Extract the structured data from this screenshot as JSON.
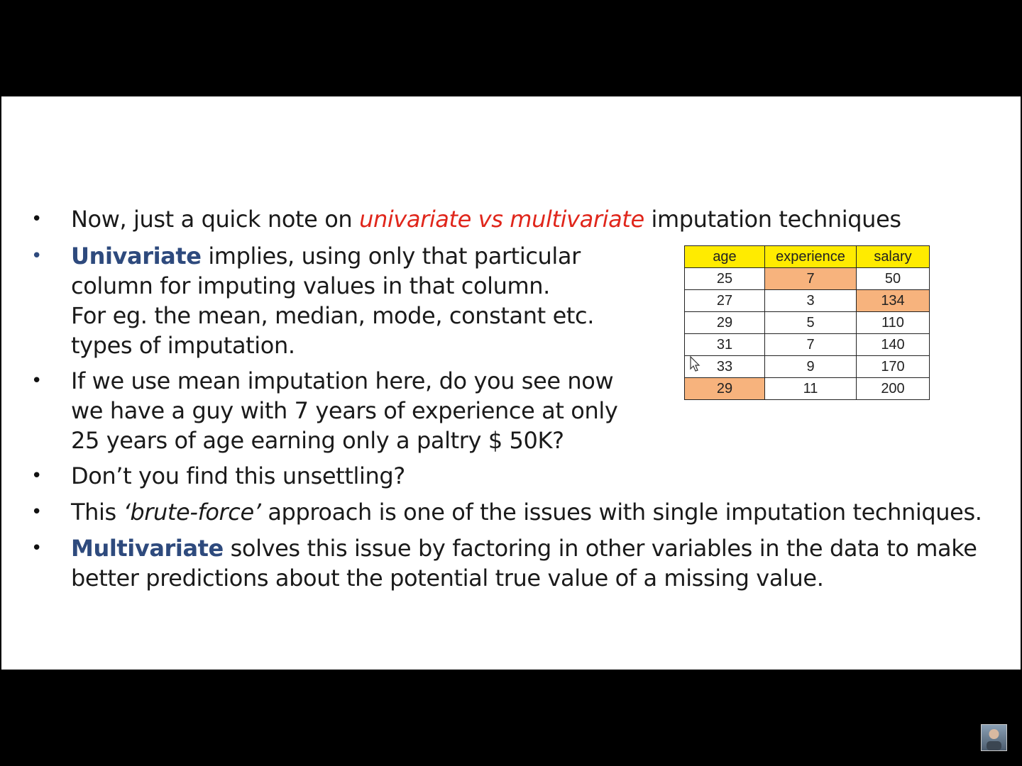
{
  "bullets": {
    "b1": {
      "pre": "Now, just a quick note on ",
      "accent": "univariate vs multivariate",
      "post": " imputation techniques"
    },
    "b2": {
      "term": "Univariate",
      "line1": " implies, using only that particular",
      "line2": "column for imputing values in that column.",
      "line3": "For eg. the mean, median, mode, constant etc.",
      "line4": "types of imputation."
    },
    "b3": {
      "line1": "If we use mean imputation here, do you see now",
      "line2": "we have a guy with 7 years of experience at only",
      "line3": "25 years of age earning only a paltry $ 50K?"
    },
    "b4": {
      "text": "Don’t you find this unsettling?"
    },
    "b5": {
      "pre": "This ",
      "accent": "‘brute-force’",
      "post": " approach is one of the issues with single imputation techniques."
    },
    "b6": {
      "term": "Multivariate",
      "line1": " solves this issue by factoring in other variables in the data to make",
      "line2": "better predictions about the potential true value of a missing value."
    }
  },
  "table": {
    "headers": [
      "age",
      "experience",
      "salary"
    ],
    "rows": [
      [
        "25",
        "7",
        "50"
      ],
      [
        "27",
        "3",
        "134"
      ],
      [
        "29",
        "5",
        "110"
      ],
      [
        "31",
        "7",
        "140"
      ],
      [
        "33",
        "9",
        "170"
      ],
      [
        "29",
        "11",
        "200"
      ]
    ]
  },
  "colors": {
    "header_fill": "#ffeb00",
    "highlight_fill": "#f7b37d",
    "accent_red": "#e0261b",
    "accent_blue": "#2e4a7d"
  },
  "icons": {
    "cursor": "arrow-cursor-icon",
    "thumbnail": "presenter-thumbnail"
  }
}
